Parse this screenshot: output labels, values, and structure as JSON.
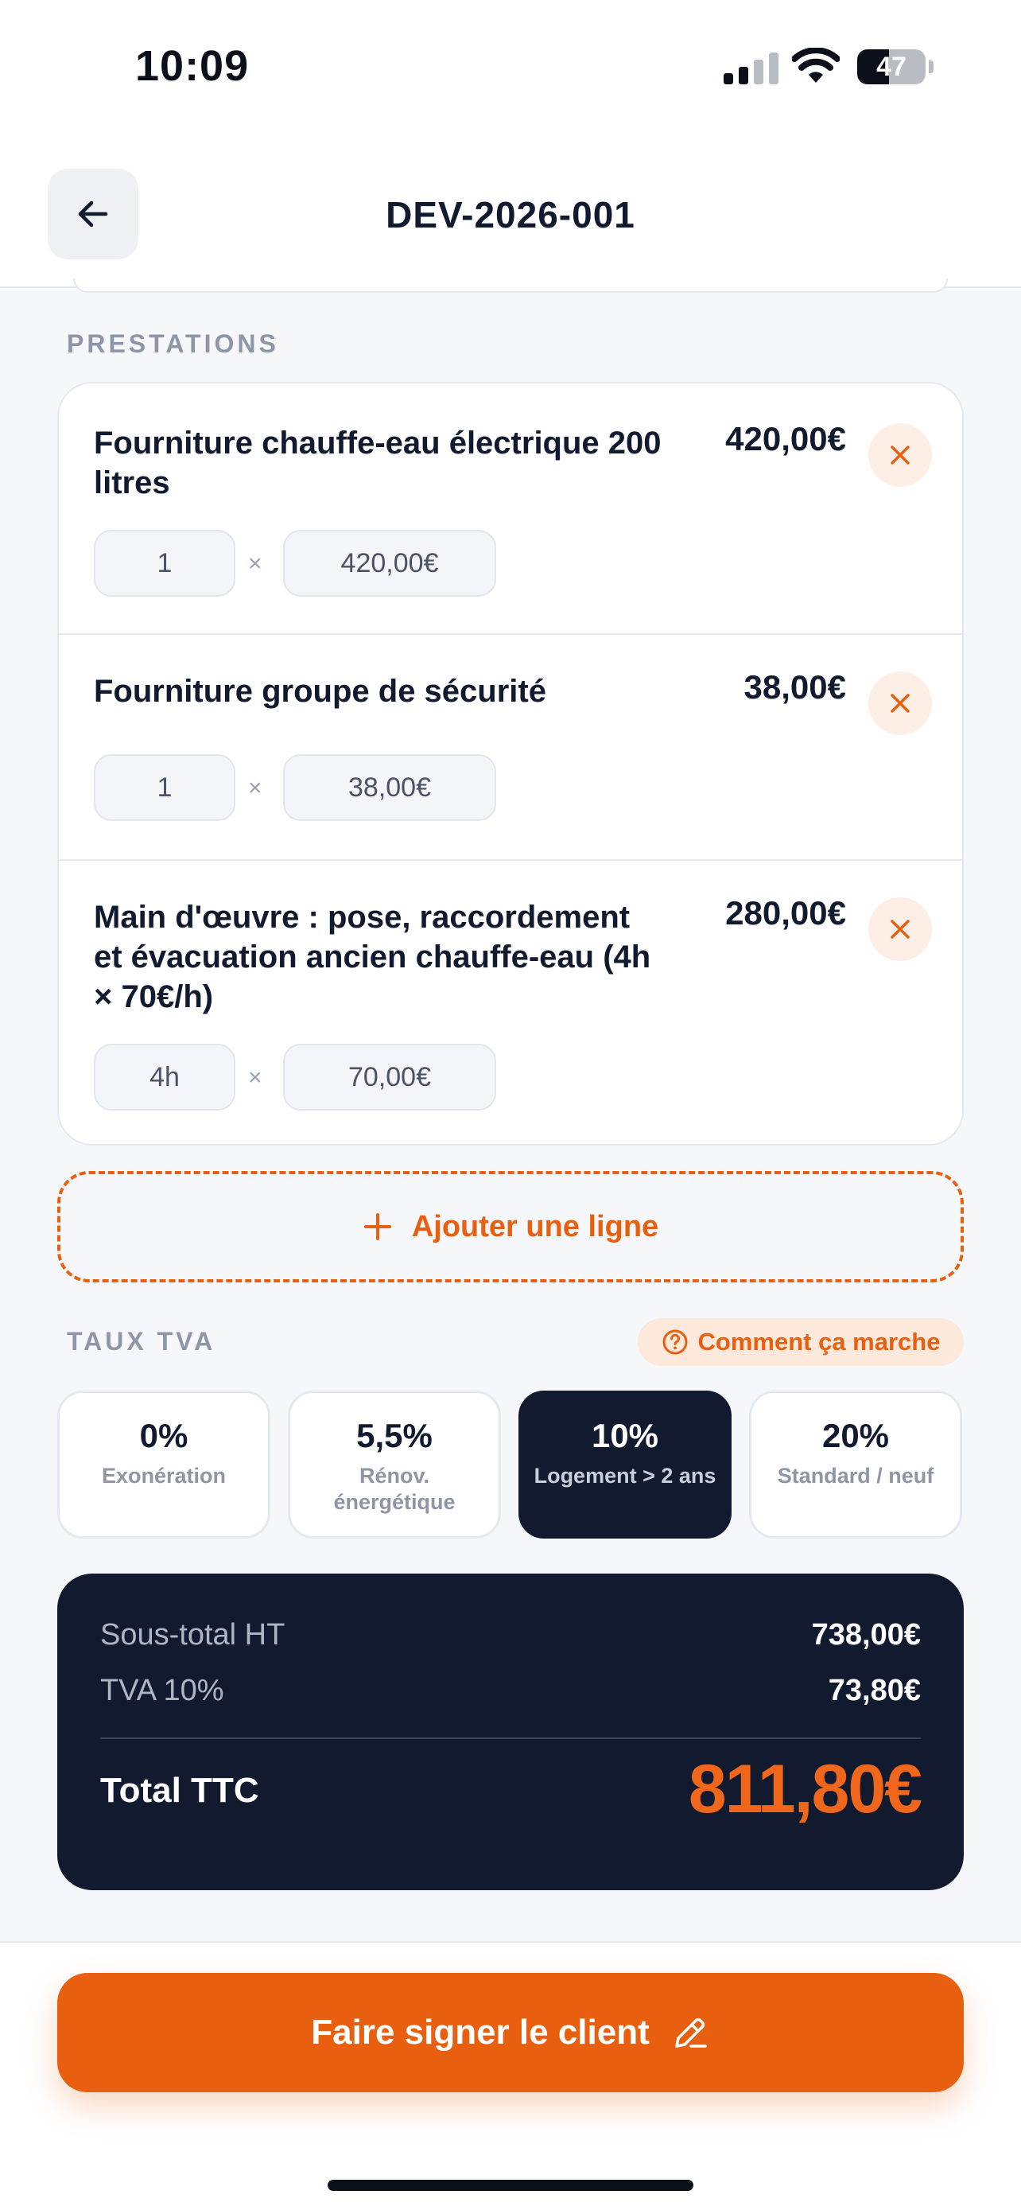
{
  "status_bar": {
    "time": "10:09",
    "battery_level": "47",
    "battery_fraction": 0.47
  },
  "header": {
    "title": "DEV-2026-001",
    "back_icon": "arrow-left-icon"
  },
  "prestations": {
    "section_label": "PRESTATIONS",
    "items": [
      {
        "description": "Fourniture chauffe-eau électrique 200 litres",
        "total": "420,00€",
        "quantity": "1",
        "separator": "×",
        "unit_price": "420,00€"
      },
      {
        "description": "Fourniture groupe de sécurité",
        "total": "38,00€",
        "quantity": "1",
        "separator": "×",
        "unit_price": "38,00€"
      },
      {
        "description": "Main d'œuvre : pose, raccordement et évacuation ancien chauffe-eau (4h × 70€/h)",
        "total": "280,00€",
        "quantity": "4h",
        "separator": "×",
        "unit_price": "70,00€"
      }
    ],
    "add_line_label": "Ajouter une ligne"
  },
  "vat": {
    "section_label": "TAUX TVA",
    "help_label": "Comment ça marche",
    "options": [
      {
        "rate": "0%",
        "description": "Exonération",
        "selected": false
      },
      {
        "rate": "5,5%",
        "description": "Rénov. énergétique",
        "selected": false
      },
      {
        "rate": "10%",
        "description": "Logement > 2 ans",
        "selected": true
      },
      {
        "rate": "20%",
        "description": "Standard / neuf",
        "selected": false
      }
    ]
  },
  "totals": {
    "subtotal_label": "Sous-total HT",
    "subtotal_value": "738,00€",
    "vat_label": "TVA 10%",
    "vat_value": "73,80€",
    "grand_total_label": "Total TTC",
    "grand_total_value": "811,80€"
  },
  "footer": {
    "sign_button_label": "Faire signer le client",
    "sign_icon": "pencil-icon"
  },
  "colors": {
    "accent": "#e8600f",
    "dark": "#111a2e",
    "background": "#f5f7fb"
  }
}
